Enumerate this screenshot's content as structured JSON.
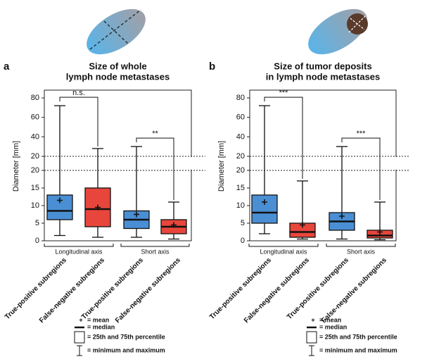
{
  "chart_data": [
    {
      "type": "box",
      "panel_label": "a",
      "title": [
        "Size of whole",
        "lymph node metastases"
      ],
      "ylabel": "Diameter [mm]",
      "y_segments": [
        {
          "ylim": [
            0,
            20
          ],
          "yticks": [
            0,
            5,
            10,
            15,
            20
          ]
        },
        {
          "ylim": [
            20,
            88
          ],
          "yticks": [
            20,
            40,
            60,
            80
          ]
        }
      ],
      "groups": [
        {
          "label": "Longitudinal axis",
          "significance": "n.s.",
          "boxes": [
            {
              "category": "True-positive subregions",
              "color": "#4a8fd4",
              "min": 1.5,
              "q1": 6,
              "median": 8.5,
              "q3": 13,
              "max": 72,
              "mean": 11.5
            },
            {
              "category": "False-negative subregions",
              "color": "#e8463c",
              "min": 1,
              "q1": 4,
              "median": 9,
              "q3": 15,
              "max": 28,
              "mean": 9.5
            }
          ]
        },
        {
          "label": "Short axis",
          "significance": "**",
          "boxes": [
            {
              "category": "True-positive subregions",
              "color": "#4a8fd4",
              "min": 1,
              "q1": 3.5,
              "median": 6,
              "q3": 8.5,
              "max": 30,
              "mean": 7.5
            },
            {
              "category": "False-negative subregions",
              "color": "#e8463c",
              "min": 0.5,
              "q1": 2,
              "median": 4,
              "q3": 6,
              "max": 11,
              "mean": 4.5
            }
          ]
        }
      ],
      "key": [
        {
          "symbol": "+",
          "label": "= mean"
        },
        {
          "label": "= median"
        },
        {
          "label": "= 25th and 75th percentile"
        },
        {
          "label": "= minimum and maximum"
        }
      ]
    },
    {
      "type": "box",
      "panel_label": "b",
      "title": [
        "Size of tumor deposits",
        "in lymph node metastases"
      ],
      "ylabel": "Diameter [mm]",
      "y_segments": [
        {
          "ylim": [
            0,
            20
          ],
          "yticks": [
            0,
            5,
            10,
            15,
            20
          ]
        },
        {
          "ylim": [
            20,
            88
          ],
          "yticks": [
            20,
            40,
            60,
            80
          ]
        }
      ],
      "groups": [
        {
          "label": "Longitudinal axis",
          "significance": "***",
          "boxes": [
            {
              "category": "True-positive subregions",
              "color": "#4a8fd4",
              "min": 2,
              "q1": 5,
              "median": 8,
              "q3": 13,
              "max": 72,
              "mean": 11
            },
            {
              "category": "False-negative subregions",
              "color": "#e8463c",
              "min": 0.5,
              "q1": 1,
              "median": 2.5,
              "q3": 5,
              "max": 17,
              "mean": 4.5
            }
          ]
        },
        {
          "label": "Short axis",
          "significance": "***",
          "boxes": [
            {
              "category": "True-positive subregions",
              "color": "#4a8fd4",
              "min": 0.5,
              "q1": 3,
              "median": 5.5,
              "q3": 8,
              "max": 30,
              "mean": 7
            },
            {
              "category": "False-negative subregions",
              "color": "#e8463c",
              "min": 0.3,
              "q1": 0.8,
              "median": 1.5,
              "q3": 3,
              "max": 11,
              "mean": 2.5
            }
          ]
        }
      ],
      "key": [
        {
          "symbol": "+",
          "label": "= mean"
        },
        {
          "label": "= median"
        },
        {
          "label": "= 25th and 75th percentile"
        },
        {
          "label": "= minimum and maximum"
        }
      ]
    }
  ]
}
